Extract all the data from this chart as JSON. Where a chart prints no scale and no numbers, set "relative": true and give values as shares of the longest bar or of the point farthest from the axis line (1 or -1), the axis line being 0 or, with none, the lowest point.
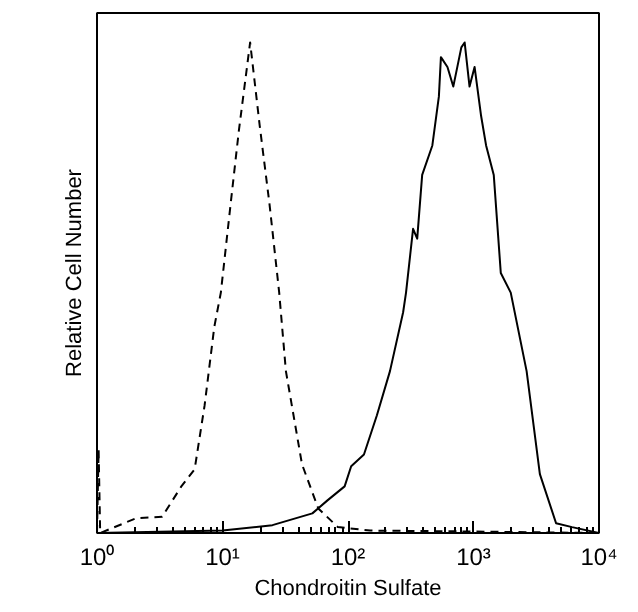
{
  "chart_data": {
    "type": "line",
    "relative": true,
    "log": "x",
    "xlabel": "Chondroitin Sulfate",
    "ylabel": "Relative Cell Number",
    "xlim": [
      1,
      10000
    ],
    "xticks": [
      {
        "value": 1,
        "label": "10⁰"
      },
      {
        "value": 10,
        "label": "10¹"
      },
      {
        "value": 100,
        "label": "10²"
      },
      {
        "value": 1000,
        "label": "10³"
      },
      {
        "value": 10000,
        "label": "10⁴"
      }
    ],
    "series": [
      {
        "color": "#000000",
        "line_style": "dashed",
        "x": [
          1,
          1.03,
          1.06,
          2.05,
          3.3,
          4.7,
          6.0,
          7.2,
          8.6,
          9.7,
          11.6,
          13.5,
          16.6,
          19.8,
          23.7,
          28.3,
          32,
          43,
          58,
          83,
          150,
          1000,
          10000
        ],
        "values": [
          0,
          0.17,
          0,
          0.03,
          0.033,
          0.095,
          0.13,
          0.26,
          0.42,
          0.49,
          0.67,
          0.82,
          1.0,
          0.83,
          0.67,
          0.49,
          0.33,
          0.14,
          0.05,
          0.012,
          0.005,
          0.003,
          0
        ]
      },
      {
        "color": "#000000",
        "line_style": "solid",
        "x": [
          1,
          10,
          25,
          52,
          69,
          94,
          106,
          134,
          170,
          216,
          275,
          290,
          330,
          356,
          390,
          470,
          530,
          550,
          620,
          690,
          800,
          850,
          930,
          1020,
          1150,
          1260,
          1450,
          1650,
          1980,
          2650,
          3380,
          4550,
          6100,
          10000
        ],
        "values": [
          0,
          0.005,
          0.016,
          0.04,
          0.067,
          0.095,
          0.136,
          0.16,
          0.24,
          0.33,
          0.45,
          0.49,
          0.62,
          0.6,
          0.73,
          0.79,
          0.89,
          0.97,
          0.95,
          0.91,
          0.99,
          1.0,
          0.91,
          0.95,
          0.85,
          0.79,
          0.73,
          0.53,
          0.49,
          0.33,
          0.12,
          0.02,
          0.012,
          0
        ]
      }
    ]
  }
}
